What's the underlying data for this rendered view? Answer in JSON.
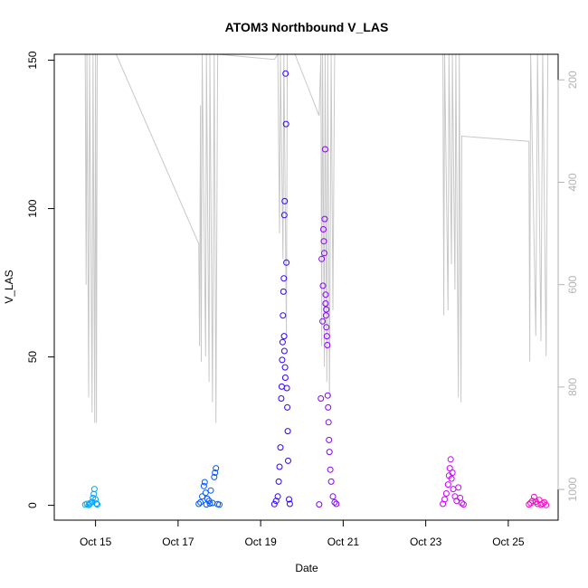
{
  "chart_data": {
    "type": "scatter",
    "title": "ATOM3 Northbound V_LAS",
    "xlabel": "Date",
    "ylabel": "V_LAS",
    "x_unit": "date",
    "xlim": [
      "2021-10-14 00:00",
      "2021-10-26 05:00"
    ],
    "ylim": [
      -5,
      152
    ],
    "y_ticks": [
      0,
      50,
      100,
      150
    ],
    "x_ticks": [
      {
        "date": "2021-10-15 00:00",
        "label": "Oct 15"
      },
      {
        "date": "2021-10-17 00:00",
        "label": "Oct 17"
      },
      {
        "date": "2021-10-19 00:00",
        "label": "Oct 19"
      },
      {
        "date": "2021-10-21 00:00",
        "label": "Oct 21"
      },
      {
        "date": "2021-10-23 00:00",
        "label": "Oct 23"
      },
      {
        "date": "2021-10-25 00:00",
        "label": "Oct 25"
      }
    ],
    "right_axis": {
      "color": "#b3b3b3",
      "reversed": true,
      "range": [
        150,
        1060
      ],
      "ticks": [
        200,
        400,
        600,
        800,
        1000
      ]
    },
    "series": [
      {
        "color": "#00a6ff",
        "marker": "open-circle",
        "points": [
          [
            "2021-10-14 18:00",
            0.2
          ],
          [
            "2021-10-14 19:00",
            0.5
          ],
          [
            "2021-10-14 20:00",
            0.1
          ],
          [
            "2021-10-14 21:00",
            0.8
          ],
          [
            "2021-10-14 22:00",
            1.2
          ],
          [
            "2021-10-14 22:30",
            2.5
          ],
          [
            "2021-10-14 23:00",
            3.8
          ],
          [
            "2021-10-14 23:20",
            5.5
          ],
          [
            "2021-10-15 00:00",
            2.0
          ],
          [
            "2021-10-15 00:30",
            0.6
          ],
          [
            "2021-10-15 01:00",
            0.3
          ],
          [
            "2021-10-14 20:30",
            0.4
          ]
        ]
      },
      {
        "color": "#0055ff",
        "marker": "open-circle",
        "points": [
          [
            "2021-10-17 12:00",
            0.5
          ],
          [
            "2021-10-17 13:00",
            1.0
          ],
          [
            "2021-10-17 14:00",
            3.0
          ],
          [
            "2021-10-17 15:00",
            6.5
          ],
          [
            "2021-10-17 15:30",
            7.8
          ],
          [
            "2021-10-17 16:00",
            4.2
          ],
          [
            "2021-10-17 17:00",
            2.2
          ],
          [
            "2021-10-17 18:00",
            1.5
          ],
          [
            "2021-10-17 19:00",
            5.0
          ],
          [
            "2021-10-17 20:00",
            0.8
          ],
          [
            "2021-10-17 21:00",
            9.5
          ],
          [
            "2021-10-17 21:30",
            11.0
          ],
          [
            "2021-10-17 22:00",
            12.5
          ],
          [
            "2021-10-17 23:00",
            0.4
          ],
          [
            "2021-10-18 00:00",
            0.2
          ],
          [
            "2021-10-17 16:30",
            0.3
          ],
          [
            "2021-10-17 18:30",
            0.6
          ]
        ]
      },
      {
        "color": "#3300ff",
        "marker": "open-circle",
        "points": [
          [
            "2021-10-19 08:00",
            0.4
          ],
          [
            "2021-10-19 09:00",
            1.5
          ],
          [
            "2021-10-19 10:00",
            3.0
          ],
          [
            "2021-10-19 10:30",
            8.0
          ],
          [
            "2021-10-19 11:00",
            13.0
          ],
          [
            "2021-10-19 11:30",
            19.5
          ],
          [
            "2021-10-19 12:00",
            36.0
          ],
          [
            "2021-10-19 12:15",
            40.0
          ],
          [
            "2021-10-19 12:30",
            49.0
          ],
          [
            "2021-10-19 12:45",
            55.0
          ],
          [
            "2021-10-19 13:00",
            64.0
          ],
          [
            "2021-10-19 13:15",
            72.0
          ],
          [
            "2021-10-19 13:30",
            76.5
          ],
          [
            "2021-10-19 13:45",
            97.8
          ],
          [
            "2021-10-19 14:00",
            102.5
          ],
          [
            "2021-10-19 14:30",
            145.5
          ],
          [
            "2021-10-19 14:45",
            128.5
          ],
          [
            "2021-10-19 15:00",
            81.8
          ],
          [
            "2021-10-19 15:15",
            39.5
          ],
          [
            "2021-10-19 15:30",
            33.0
          ],
          [
            "2021-10-19 15:45",
            25.0
          ],
          [
            "2021-10-19 16:00",
            15.0
          ],
          [
            "2021-10-19 16:30",
            2.0
          ],
          [
            "2021-10-19 17:00",
            0.5
          ],
          [
            "2021-10-19 13:40",
            57.0
          ],
          [
            "2021-10-19 13:50",
            52.0
          ],
          [
            "2021-10-19 14:10",
            46.5
          ],
          [
            "2021-10-19 14:20",
            43.0
          ]
        ]
      },
      {
        "color": "#8800ff",
        "marker": "open-circle",
        "points": [
          [
            "2021-10-20 10:00",
            0.3
          ],
          [
            "2021-10-20 11:00",
            36.0
          ],
          [
            "2021-10-20 11:30",
            83.0
          ],
          [
            "2021-10-20 12:00",
            62.0
          ],
          [
            "2021-10-20 12:15",
            74.0
          ],
          [
            "2021-10-20 12:30",
            93.0
          ],
          [
            "2021-10-20 12:45",
            89.0
          ],
          [
            "2021-10-20 13:00",
            85.0
          ],
          [
            "2021-10-20 13:15",
            96.5
          ],
          [
            "2021-10-20 13:30",
            120.0
          ],
          [
            "2021-10-20 13:45",
            68.0
          ],
          [
            "2021-10-20 14:00",
            64.0
          ],
          [
            "2021-10-20 14:15",
            60.0
          ],
          [
            "2021-10-20 14:30",
            57.0
          ],
          [
            "2021-10-20 14:45",
            54.0
          ],
          [
            "2021-10-20 15:00",
            37.0
          ],
          [
            "2021-10-20 15:15",
            33.0
          ],
          [
            "2021-10-20 15:30",
            28.0
          ],
          [
            "2021-10-20 15:45",
            22.0
          ],
          [
            "2021-10-20 16:00",
            18.0
          ],
          [
            "2021-10-20 16:30",
            12.0
          ],
          [
            "2021-10-20 17:00",
            8.0
          ],
          [
            "2021-10-20 18:00",
            3.0
          ],
          [
            "2021-10-20 19:00",
            1.0
          ],
          [
            "2021-10-20 20:00",
            0.5
          ],
          [
            "2021-10-20 13:50",
            71.0
          ],
          [
            "2021-10-20 14:10",
            66.0
          ]
        ]
      },
      {
        "color": "#cc00ff",
        "marker": "open-circle",
        "points": [
          [
            "2021-10-23 10:00",
            0.5
          ],
          [
            "2021-10-23 11:00",
            2.0
          ],
          [
            "2021-10-23 12:00",
            4.0
          ],
          [
            "2021-10-23 13:00",
            7.0
          ],
          [
            "2021-10-23 13:30",
            10.0
          ],
          [
            "2021-10-23 14:00",
            12.5
          ],
          [
            "2021-10-23 14:30",
            15.5
          ],
          [
            "2021-10-23 15:00",
            9.0
          ],
          [
            "2021-10-23 16:00",
            5.5
          ],
          [
            "2021-10-23 17:00",
            3.0
          ],
          [
            "2021-10-23 18:00",
            1.5
          ],
          [
            "2021-10-23 19:00",
            6.0
          ],
          [
            "2021-10-23 20:00",
            2.5
          ],
          [
            "2021-10-23 21:00",
            0.8
          ],
          [
            "2021-10-23 22:00",
            0.3
          ],
          [
            "2021-10-23 15:30",
            11.0
          ]
        ]
      },
      {
        "color": "#ff00cc",
        "marker": "open-circle",
        "points": [
          [
            "2021-10-25 12:00",
            0.3
          ],
          [
            "2021-10-25 13:00",
            0.8
          ],
          [
            "2021-10-25 14:00",
            1.5
          ],
          [
            "2021-10-25 15:00",
            2.8
          ],
          [
            "2021-10-25 16:00",
            1.2
          ],
          [
            "2021-10-25 17:00",
            0.5
          ],
          [
            "2021-10-25 18:00",
            1.8
          ],
          [
            "2021-10-25 19:00",
            0.2
          ],
          [
            "2021-10-25 20:00",
            0.6
          ],
          [
            "2021-10-25 21:00",
            1.0
          ],
          [
            "2021-10-25 22:00",
            0.1
          ]
        ]
      }
    ],
    "background_line": {
      "color": "#c8c8c8",
      "axis": "right",
      "points": [
        [
          "2021-10-14 18:00",
          150
        ],
        [
          "2021-10-14 18:30",
          600
        ],
        [
          "2021-10-14 19:00",
          150
        ],
        [
          "2021-10-14 20:00",
          820
        ],
        [
          "2021-10-14 20:30",
          150
        ],
        [
          "2021-10-14 22:00",
          850
        ],
        [
          "2021-10-14 22:30",
          150
        ],
        [
          "2021-10-14 23:30",
          870
        ],
        [
          "2021-10-15 00:00",
          150
        ],
        [
          "2021-10-15 00:30",
          870
        ],
        [
          "2021-10-15 01:00",
          150
        ],
        [
          "2021-10-15 12:00",
          150
        ],
        [
          "2021-10-17 12:00",
          520
        ],
        [
          "2021-10-17 12:30",
          720
        ],
        [
          "2021-10-17 13:00",
          250
        ],
        [
          "2021-10-17 13:30",
          750
        ],
        [
          "2021-10-17 14:00",
          150
        ],
        [
          "2021-10-17 16:00",
          740
        ],
        [
          "2021-10-17 16:30",
          150
        ],
        [
          "2021-10-17 18:00",
          790
        ],
        [
          "2021-10-17 18:30",
          150
        ],
        [
          "2021-10-17 20:00",
          830
        ],
        [
          "2021-10-17 21:00",
          150
        ],
        [
          "2021-10-17 22:00",
          870
        ],
        [
          "2021-10-17 23:00",
          150
        ],
        [
          "2021-10-19 08:00",
          160
        ],
        [
          "2021-10-19 10:00",
          150
        ],
        [
          "2021-10-19 11:00",
          500
        ],
        [
          "2021-10-19 11:30",
          150
        ],
        [
          "2021-10-19 13:00",
          550
        ],
        [
          "2021-10-19 13:30",
          150
        ],
        [
          "2021-10-19 15:00",
          700
        ],
        [
          "2021-10-19 15:30",
          150
        ],
        [
          "2021-10-19 20:00",
          150
        ],
        [
          "2021-10-20 10:00",
          270
        ],
        [
          "2021-10-20 11:00",
          150
        ],
        [
          "2021-10-20 11:30",
          720
        ],
        [
          "2021-10-20 12:00",
          150
        ],
        [
          "2021-10-20 13:00",
          760
        ],
        [
          "2021-10-20 13:30",
          150
        ],
        [
          "2021-10-20 14:30",
          790
        ],
        [
          "2021-10-20 15:00",
          150
        ],
        [
          "2021-10-20 16:00",
          820
        ],
        [
          "2021-10-20 17:00",
          150
        ],
        [
          "2021-10-20 18:00",
          650
        ],
        [
          "2021-10-20 19:00",
          150
        ],
        [
          "2021-10-23 10:00",
          150
        ],
        [
          "2021-10-23 10:30",
          660
        ],
        [
          "2021-10-23 11:00",
          150
        ],
        [
          "2021-10-23 13:00",
          650
        ],
        [
          "2021-10-23 13:30",
          150
        ],
        [
          "2021-10-23 15:00",
          560
        ],
        [
          "2021-10-23 15:30",
          150
        ],
        [
          "2021-10-23 17:00",
          610
        ],
        [
          "2021-10-23 17:30",
          150
        ],
        [
          "2021-10-23 19:00",
          820
        ],
        [
          "2021-10-23 19:30",
          150
        ],
        [
          "2021-10-23 20:30",
          830
        ],
        [
          "2021-10-23 21:00",
          310
        ],
        [
          "2021-10-25 12:00",
          320
        ],
        [
          "2021-10-25 12:30",
          750
        ],
        [
          "2021-10-25 13:00",
          150
        ],
        [
          "2021-10-25 16:00",
          700
        ],
        [
          "2021-10-25 17:00",
          150
        ],
        [
          "2021-10-25 19:00",
          710
        ],
        [
          "2021-10-25 20:00",
          150
        ],
        [
          "2021-10-25 22:00",
          740
        ],
        [
          "2021-10-25 23:00",
          150
        ]
      ]
    }
  }
}
